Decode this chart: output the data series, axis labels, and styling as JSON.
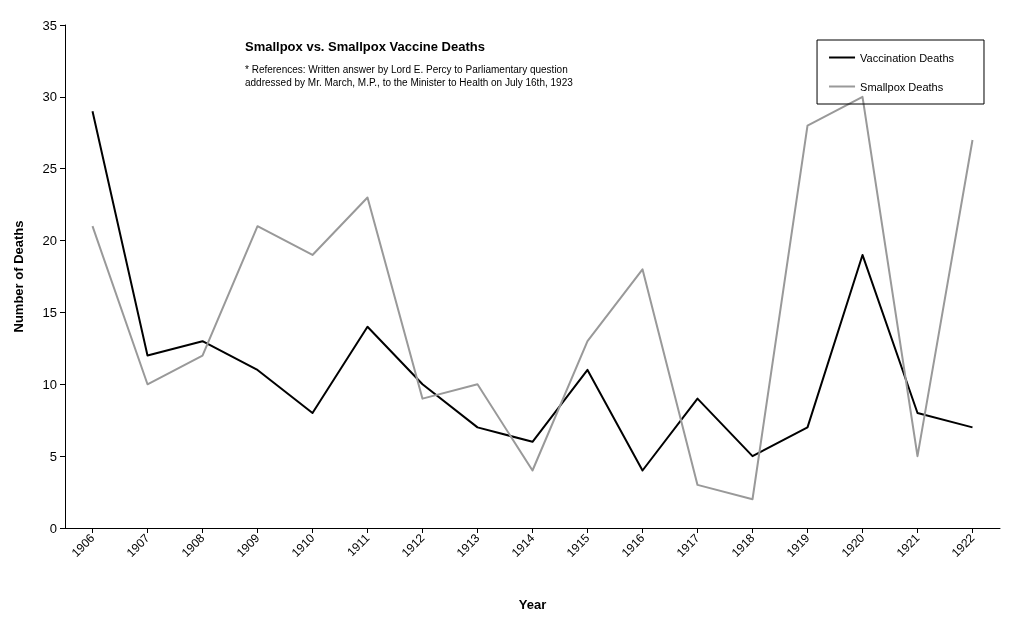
{
  "chart_data": {
    "type": "line",
    "title": "Smallpox vs. Smallpox Vaccine Deaths",
    "annotations": [
      "* References: Written answer by Lord E. Percy to Parliamentary question addressed by Mr. March, M.P., to the Minister to Health on July 16th, 1923"
    ],
    "xlabel": "Year",
    "ylabel": "Number of Deaths",
    "categories": [
      "1906",
      "1907",
      "1908",
      "1909",
      "1910",
      "1911",
      "1912",
      "1913",
      "1914",
      "1915",
      "1916",
      "1917",
      "1918",
      "1919",
      "1920",
      "1921",
      "1922"
    ],
    "series": [
      {
        "name": "Vaccination Deaths",
        "color": "#000000",
        "values": [
          29,
          12,
          13,
          11,
          8,
          14,
          10,
          7,
          6,
          11,
          4,
          9,
          5,
          7,
          19,
          8,
          7
        ]
      },
      {
        "name": "Smallpox Deaths",
        "color": "#999999",
        "values": [
          21,
          10,
          12,
          21,
          19,
          23,
          9,
          10,
          4,
          13,
          18,
          3,
          2,
          28,
          30,
          5,
          27
        ]
      }
    ],
    "ylim": [
      0,
      35
    ],
    "yticks": [
      0,
      5,
      10,
      15,
      20,
      25,
      30,
      35
    ],
    "grid": false,
    "legend": "top right"
  }
}
